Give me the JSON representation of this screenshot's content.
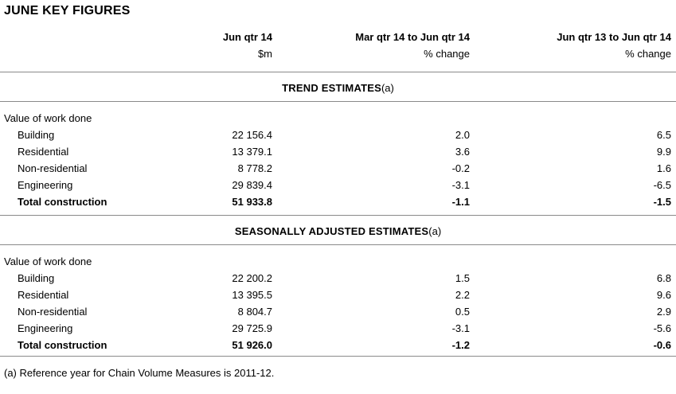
{
  "title": "JUNE KEY FIGURES",
  "columns": {
    "col1": {
      "period": "Jun qtr 14",
      "unit": "$m"
    },
    "col2": {
      "period": "Mar qtr 14 to Jun qtr 14",
      "unit": "% change"
    },
    "col3": {
      "period": "Jun qtr 13 to Jun qtr 14",
      "unit": "% change"
    }
  },
  "sections": [
    {
      "heading": "TREND ESTIMATES",
      "heading_note": "(a)",
      "group_label": "Value of work done",
      "rows": [
        {
          "label": "Building",
          "value": "22 156.4",
          "qtr_change": "2.0",
          "yr_change": "6.5"
        },
        {
          "label": "Residential",
          "value": "13 379.1",
          "qtr_change": "3.6",
          "yr_change": "9.9"
        },
        {
          "label": "Non-residential",
          "value": "8 778.2",
          "qtr_change": "-0.2",
          "yr_change": "1.6"
        },
        {
          "label": "Engineering",
          "value": "29 839.4",
          "qtr_change": "-3.1",
          "yr_change": "-6.5"
        },
        {
          "label": "Total construction",
          "value": "51 933.8",
          "qtr_change": "-1.1",
          "yr_change": "-1.5"
        }
      ]
    },
    {
      "heading": "SEASONALLY ADJUSTED ESTIMATES",
      "heading_note": "(a)",
      "group_label": "Value of work done",
      "rows": [
        {
          "label": "Building",
          "value": "22 200.2",
          "qtr_change": "1.5",
          "yr_change": "6.8"
        },
        {
          "label": "Residential",
          "value": "13 395.5",
          "qtr_change": "2.2",
          "yr_change": "9.6"
        },
        {
          "label": "Non-residential",
          "value": "8 804.7",
          "qtr_change": "0.5",
          "yr_change": "2.9"
        },
        {
          "label": "Engineering",
          "value": "29 725.9",
          "qtr_change": "-3.1",
          "yr_change": "-5.6"
        },
        {
          "label": "Total construction",
          "value": "51 926.0",
          "qtr_change": "-1.2",
          "yr_change": "-0.6"
        }
      ]
    }
  ],
  "footnote": "(a) Reference year for Chain Volume Measures is 2011-12.",
  "colors": {
    "rule": "#8a8a8a",
    "text": "#000000",
    "background": "#ffffff"
  }
}
